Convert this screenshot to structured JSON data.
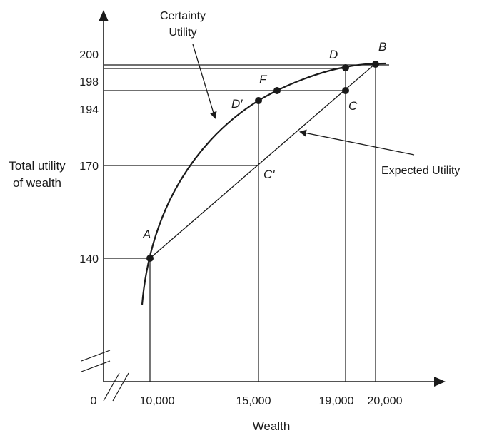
{
  "chart_data": {
    "type": "line",
    "xlabel": "Wealth",
    "ylabel": [
      "Total utility",
      "of wealth"
    ],
    "origin_label": "0",
    "x_ticks": [
      "10,000",
      "15,000",
      "19,000",
      "20,000"
    ],
    "y_ticks": [
      "200",
      "198",
      "194",
      "170",
      "140"
    ],
    "series": [
      {
        "name": "Certainty Utility",
        "points": [
          [
            9800,
            126
          ],
          [
            10000,
            140
          ],
          [
            11000,
            160
          ],
          [
            12000,
            175
          ],
          [
            13000,
            184
          ],
          [
            14000,
            190
          ],
          [
            15000,
            194
          ],
          [
            16000,
            197
          ],
          [
            17000,
            199
          ],
          [
            18000,
            199.6
          ],
          [
            19000,
            200
          ],
          [
            20000,
            200
          ]
        ]
      },
      {
        "name": "Expected Utility",
        "points": [
          [
            10000,
            140
          ],
          [
            20000,
            200
          ]
        ]
      }
    ],
    "points": [
      {
        "label": "A",
        "x": 10000,
        "y": 140
      },
      {
        "label": "B",
        "x": 20000,
        "y": 200
      },
      {
        "label": "C",
        "x": 19000,
        "y": 194
      },
      {
        "label": "C'",
        "x": 15000,
        "y": 170
      },
      {
        "label": "D",
        "x": 19000,
        "y": 200
      },
      {
        "label": "D'",
        "x": 15000,
        "y": 194
      },
      {
        "label": "F",
        "x": 16000,
        "y": 194
      }
    ],
    "annotations": [
      "Certainty\nUtility",
      "Expected Utility"
    ]
  },
  "labels": {
    "certainty_line1": "Certainty",
    "certainty_line2": "Utility",
    "expected": "Expected Utility",
    "xlabel": "Wealth",
    "ylabel_line1": "Total utility",
    "ylabel_line2": "of wealth",
    "origin": "0",
    "x_ticks": [
      "10,000",
      "15,000",
      "19,000",
      "20,000"
    ],
    "y_ticks": [
      "200",
      "198",
      "194",
      "170",
      "140"
    ],
    "pt_A": "A",
    "pt_B": "B",
    "pt_C": "C",
    "pt_Cp": "C'",
    "pt_D": "D",
    "pt_Dp": "D′",
    "pt_F": "F"
  }
}
